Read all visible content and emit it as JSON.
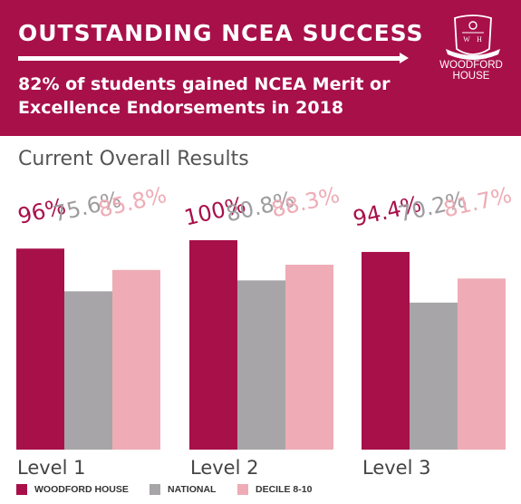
{
  "header": {
    "title": "OUTSTANDING NCEA SUCCESS",
    "subtitle": "82% of students gained NCEA Merit or Excellence Endorsements in 2018"
  },
  "logo": {
    "name_line1": "WOODFORD",
    "name_line2": "HOUSE",
    "monogram": "WH"
  },
  "section_title": "Current Overall Results",
  "colors": {
    "brand": "#a8104a",
    "woodford": "#a8104a",
    "national": "#a7a5a7",
    "decile": "#efacb6",
    "value_national": "#9e9c9e"
  },
  "chart_data": {
    "type": "bar",
    "title": "Current Overall Results",
    "categories": [
      "Level 1",
      "Level 2",
      "Level 3"
    ],
    "series": [
      {
        "name": "WOODFORD HOUSE",
        "values": [
          96,
          100,
          94.4
        ],
        "labels": [
          "96%",
          "100%",
          "94.4%"
        ]
      },
      {
        "name": "NATIONAL",
        "values": [
          75.6,
          80.8,
          70.2
        ],
        "labels": [
          "75.6%",
          "80.8%",
          "70.2%"
        ]
      },
      {
        "name": "DECILE 8-10",
        "values": [
          85.8,
          88.3,
          81.7
        ],
        "labels": [
          "85.8%",
          "88.3%",
          "81.7%"
        ]
      }
    ],
    "ylim": [
      0,
      100
    ],
    "grid": false,
    "legend_position": "bottom"
  },
  "legend": [
    {
      "label": "WOODFORD HOUSE"
    },
    {
      "label": "NATIONAL"
    },
    {
      "label": "DECILE 8-10"
    }
  ]
}
